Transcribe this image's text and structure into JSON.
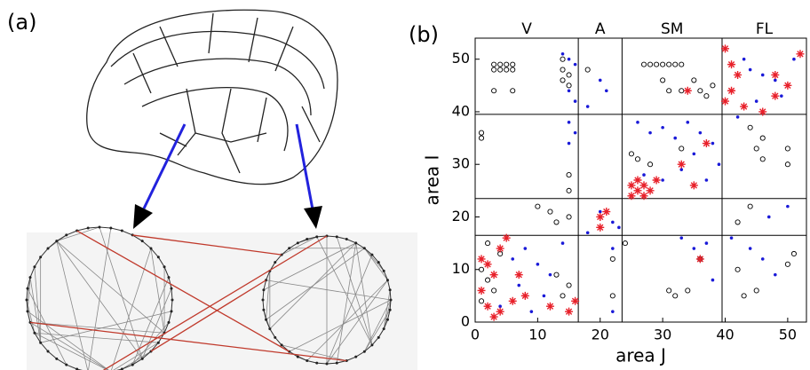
{
  "panels": {
    "a": "(a)",
    "b": "(b)"
  },
  "chart_data": {
    "type": "scatter",
    "xlabel": "area J",
    "ylabel": "area I",
    "xlim": [
      0,
      53
    ],
    "ylim": [
      0,
      54
    ],
    "xticks": [
      0,
      10,
      20,
      30,
      40,
      50
    ],
    "yticks": [
      0,
      10,
      20,
      30,
      40,
      50
    ],
    "dividers": [
      16.5,
      23.5,
      39.5
    ],
    "modules": [
      "V",
      "A",
      "SM",
      "FL"
    ],
    "series": [
      {
        "marker": "circle-open",
        "color": "#000000",
        "x": [
          3,
          4,
          5,
          6,
          3,
          4,
          5,
          6,
          3,
          6,
          14,
          14,
          15,
          14,
          15,
          18,
          27,
          28,
          29,
          30,
          31,
          32,
          33,
          30,
          31,
          33,
          35,
          36,
          37,
          38,
          1,
          1,
          15,
          15,
          33,
          25,
          26,
          28,
          44,
          46,
          45,
          46,
          50,
          50,
          10,
          12,
          13,
          15,
          2,
          4,
          1,
          2,
          3,
          1,
          14,
          15,
          13,
          22,
          22,
          24,
          31,
          32,
          34,
          36,
          42,
          43,
          45,
          50,
          51,
          44,
          42
        ],
        "values": [
          49,
          49,
          49,
          49,
          48,
          48,
          48,
          48,
          44,
          44,
          50,
          48,
          47,
          46,
          45,
          48,
          49,
          49,
          49,
          49,
          49,
          49,
          49,
          46,
          44,
          44,
          46,
          44,
          43,
          45,
          36,
          35,
          28,
          25,
          33,
          32,
          31,
          30,
          37,
          35,
          33,
          31,
          33,
          30,
          22,
          21,
          19,
          20,
          15,
          13,
          10,
          8,
          6,
          4,
          5,
          7,
          9,
          5,
          12,
          15,
          6,
          5,
          6,
          12,
          10,
          5,
          6,
          11,
          13,
          22,
          19
        ]
      },
      {
        "marker": "dot",
        "color": "#1a1ad8",
        "x": [
          14,
          15,
          16,
          15,
          16,
          20,
          21,
          18,
          15,
          16,
          15,
          26,
          28,
          30,
          32,
          34,
          36,
          35,
          38,
          27,
          30,
          33,
          37,
          39,
          42,
          44,
          46,
          48,
          51,
          49,
          45,
          43,
          20,
          22,
          23,
          18,
          8,
          6,
          10,
          12,
          7,
          11,
          4,
          9,
          14,
          22,
          33,
          35,
          37,
          38,
          44,
          46,
          48,
          50,
          47,
          41,
          22
        ],
        "values": [
          51,
          50,
          49,
          44,
          42,
          46,
          44,
          41,
          38,
          36,
          34,
          38,
          36,
          37,
          35,
          38,
          36,
          32,
          34,
          28,
          27,
          29,
          27,
          30,
          39,
          48,
          47,
          46,
          50,
          43,
          42,
          50,
          21,
          19,
          18,
          17,
          14,
          12,
          11,
          9,
          7,
          5,
          3,
          2,
          15,
          14,
          16,
          14,
          15,
          8,
          14,
          12,
          9,
          22,
          20,
          16,
          2
        ]
      },
      {
        "marker": "star",
        "color": "#e8202a",
        "x": [
          25,
          26,
          27,
          26,
          28,
          25,
          27,
          29,
          20,
          20,
          21,
          40,
          41,
          42,
          41,
          40,
          43,
          46,
          48,
          50,
          52,
          1,
          2,
          4,
          5,
          3,
          1,
          2,
          4,
          3,
          6,
          8,
          7,
          12,
          15,
          16,
          34,
          33,
          37,
          35,
          36,
          48
        ],
        "values": [
          26,
          25,
          26,
          27,
          25,
          24,
          24,
          27,
          20,
          18,
          21,
          52,
          49,
          47,
          44,
          42,
          41,
          40,
          47,
          45,
          51,
          12,
          11,
          14,
          16,
          9,
          6,
          3,
          2,
          1,
          4,
          5,
          9,
          3,
          2,
          4,
          44,
          30,
          34,
          26,
          12,
          43
        ]
      }
    ]
  }
}
